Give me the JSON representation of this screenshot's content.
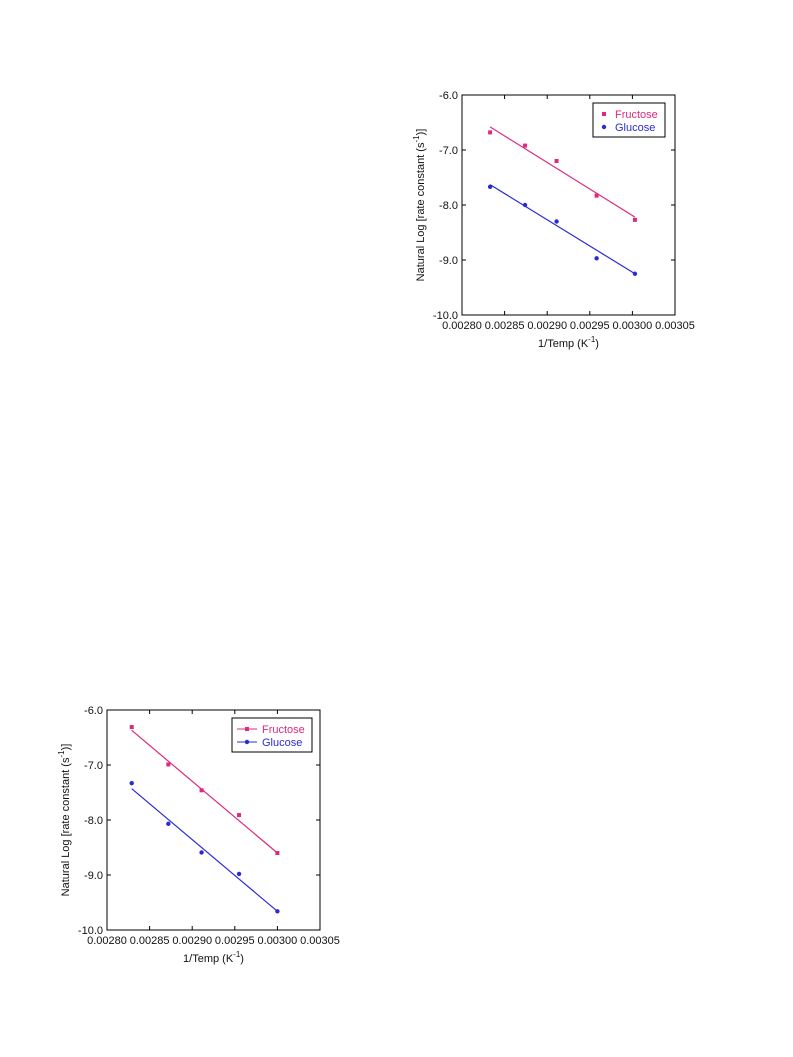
{
  "colors": {
    "fructose": "#e0287f",
    "glucose": "#2b2bd6",
    "axis": "#000000"
  },
  "chart_data": [
    {
      "type": "scatter",
      "xlabel_main": "1/Temp (K",
      "xlabel_sup": "-1",
      "xlabel_end": ")",
      "ylabel_main": "Natural Log [rate constant (s",
      "ylabel_sup": "-1",
      "ylabel_end": ")]",
      "xlim": [
        0.0028,
        0.00305
      ],
      "ylim": [
        -10.0,
        -6.0
      ],
      "xticks": [
        "0.00280",
        "0.00285",
        "0.00290",
        "0.00295",
        "0.00300",
        "0.00305"
      ],
      "yticks": [
        "-6.0",
        "-7.0",
        "-8.0",
        "-9.0",
        "-10.0"
      ],
      "legend_position": "top-right",
      "legend_style": "box",
      "series": [
        {
          "name": "Fructose",
          "marker": "square",
          "x": [
            0.002833,
            0.002874,
            0.002911,
            0.002958,
            0.003003
          ],
          "y": [
            -6.68,
            -6.92,
            -7.2,
            -7.83,
            -8.27
          ],
          "fit": {
            "x": [
              0.002833,
              0.003003
            ],
            "y": [
              -6.58,
              -8.22
            ]
          }
        },
        {
          "name": "Glucose",
          "marker": "circle",
          "x": [
            0.002833,
            0.002874,
            0.002911,
            0.002958,
            0.003003
          ],
          "y": [
            -7.67,
            -8.0,
            -8.3,
            -8.97,
            -9.25
          ],
          "fit": {
            "x": [
              0.002833,
              0.003003
            ],
            "y": [
              -7.63,
              -9.25
            ]
          }
        }
      ]
    },
    {
      "type": "line",
      "xlabel_main": "1/Temp (K",
      "xlabel_sup": "-1",
      "xlabel_end": ")",
      "ylabel_main": "Natural Log [rate constant (s",
      "ylabel_sup": "-1",
      "ylabel_end": ")]",
      "xlim": [
        0.0028,
        0.00305
      ],
      "ylim": [
        -10.0,
        -6.0
      ],
      "xticks": [
        "0.00280",
        "0.00285",
        "0.00290",
        "0.00295",
        "0.00300",
        "0.00305"
      ],
      "yticks": [
        "-6.0",
        "-7.0",
        "-8.0",
        "-9.0",
        "-10.0"
      ],
      "legend_position": "top-right",
      "legend_style": "line-marker",
      "series": [
        {
          "name": "Fructose",
          "marker": "square",
          "x": [
            0.002829,
            0.002872,
            0.002911,
            0.002955,
            0.003
          ],
          "y": [
            -6.31,
            -6.99,
            -7.46,
            -7.91,
            -8.6
          ],
          "fit": {
            "x": [
              0.002829,
              0.003
            ],
            "y": [
              -6.37,
              -8.6
            ]
          }
        },
        {
          "name": "Glucose",
          "marker": "circle",
          "x": [
            0.002829,
            0.002872,
            0.002911,
            0.002955,
            0.003
          ],
          "y": [
            -7.33,
            -8.07,
            -8.59,
            -8.98,
            -9.66
          ],
          "fit": {
            "x": [
              0.002829,
              0.003
            ],
            "y": [
              -7.43,
              -9.66
            ]
          }
        }
      ]
    }
  ]
}
